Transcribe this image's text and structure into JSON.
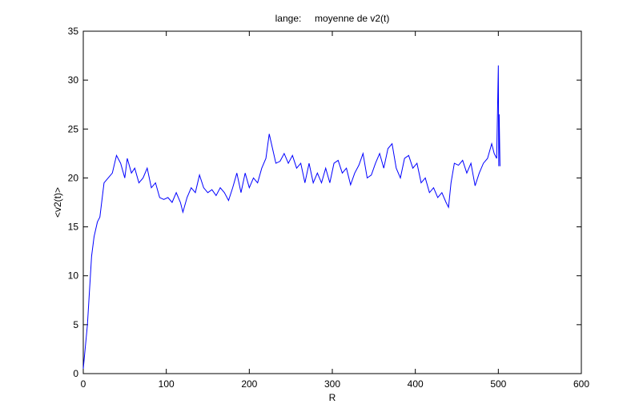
{
  "chart_data": {
    "type": "line",
    "title": "lange:     moyenne de v2(t)",
    "x_label": "R",
    "y_label": "<v2(t)>",
    "xlim": [
      0,
      600
    ],
    "xticks": [
      0,
      100,
      200,
      300,
      400,
      500,
      600
    ],
    "ylim": [
      0,
      35
    ],
    "yticks": [
      0,
      5,
      10,
      15,
      20,
      25,
      30,
      35
    ],
    "grid": false,
    "series": [
      {
        "name": "v2",
        "color": "#0000ff",
        "x": [
          0,
          5,
          10,
          13,
          17,
          20,
          25,
          30,
          35,
          40,
          45,
          50,
          53,
          58,
          62,
          67,
          72,
          77,
          82,
          87,
          92,
          97,
          102,
          107,
          112,
          117,
          120,
          125,
          130,
          135,
          140,
          145,
          150,
          155,
          160,
          165,
          170,
          175,
          180,
          185,
          190,
          195,
          200,
          205,
          210,
          215,
          220,
          224,
          228,
          232,
          237,
          242,
          247,
          252,
          257,
          262,
          267,
          272,
          277,
          282,
          287,
          292,
          297,
          302,
          307,
          312,
          317,
          322,
          327,
          332,
          337,
          342,
          347,
          352,
          357,
          362,
          367,
          372,
          377,
          382,
          387,
          392,
          397,
          402,
          407,
          412,
          417,
          422,
          427,
          432,
          437,
          440,
          443,
          447,
          452,
          457,
          462,
          467,
          472,
          477,
          482,
          487,
          492,
          495,
          498,
          500,
          500.5,
          501,
          502
        ],
        "values": [
          0.5,
          5,
          12,
          14,
          15.5,
          16,
          19.5,
          20,
          20.5,
          22.3,
          21.5,
          20,
          22,
          20.5,
          21,
          19.5,
          20,
          21,
          19,
          19.5,
          18,
          17.8,
          18,
          17.5,
          18.5,
          17.5,
          16.5,
          18,
          19,
          18.5,
          20.3,
          19,
          18.5,
          18.8,
          18.2,
          19,
          18.5,
          17.7,
          19,
          20.5,
          18.5,
          20.5,
          19,
          20,
          19.5,
          21,
          22,
          24.5,
          23,
          21.5,
          21.7,
          22.5,
          21.5,
          22.3,
          21,
          21.5,
          19.5,
          21.5,
          19.5,
          20.5,
          19.5,
          21,
          19.5,
          21.5,
          21.8,
          20.5,
          21,
          19.3,
          20.5,
          21.3,
          22.5,
          20,
          20.3,
          21.5,
          22.5,
          21,
          23,
          23.5,
          21,
          20,
          22,
          22.3,
          21,
          21.5,
          19.5,
          20,
          18.5,
          19,
          18,
          18.5,
          17.5,
          17,
          19.5,
          21.5,
          21.3,
          21.8,
          20.5,
          21.5,
          19.2,
          20.5,
          21.5,
          22,
          23.5,
          22.5,
          22,
          31.5,
          21.2,
          26.5,
          21.2
        ]
      }
    ]
  }
}
